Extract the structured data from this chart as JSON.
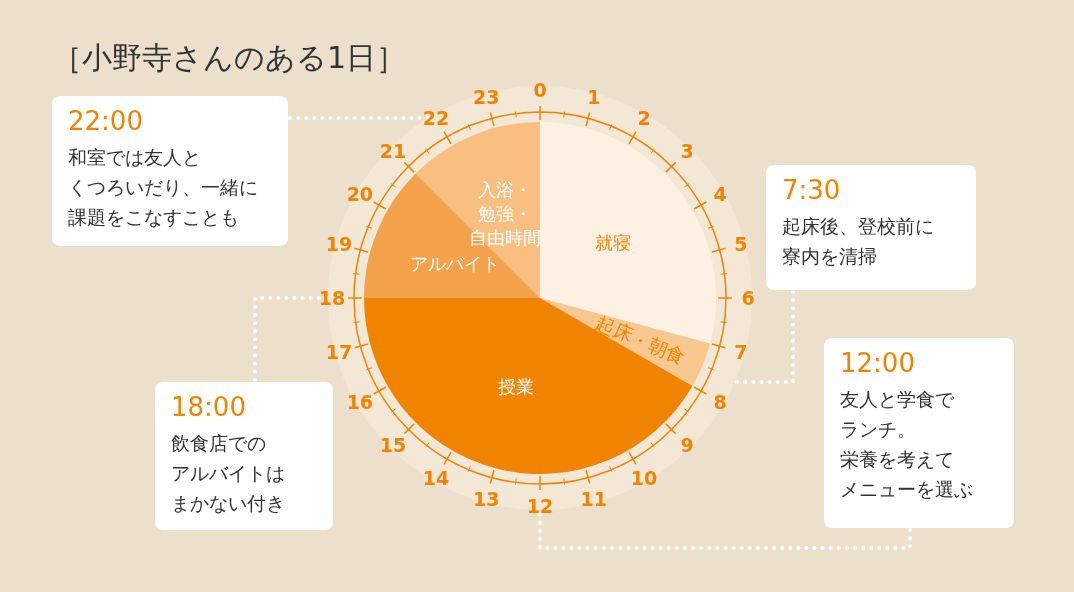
{
  "chart_data": {
    "type": "pie",
    "title": "［小野寺さんのある1日］",
    "categories": [
      "就寝",
      "起床・朝食",
      "授業",
      "アルバイト",
      "入浴・勉強・自由時間"
    ],
    "values": [
      29.16,
      4.17,
      41.67,
      12.5,
      12.5
    ],
    "colors": [
      "#fdf1e3",
      "#f9c890",
      "#f08300",
      "#f3a24b",
      "#f8bf80"
    ],
    "annotations": [
      "22:00",
      "和室では友人と",
      "くつろいだり、一緒に",
      "課題をこなすことも",
      "7:30",
      "起床後、登校前に",
      "寮内を清掃",
      "18:00",
      "飲食店での",
      "アルバイトは",
      "まかない付き",
      "12:00",
      "友人と学食で",
      "ランチ。",
      "栄養を考えて",
      "メニューを選ぶ",
      "0",
      "1",
      "2",
      "3",
      "4",
      "5",
      "6",
      "7",
      "8",
      "9",
      "10",
      "11",
      "12",
      "13",
      "14",
      "15",
      "16",
      "17",
      "18",
      "19",
      "20",
      "21",
      "22",
      "23"
    ]
  }
}
